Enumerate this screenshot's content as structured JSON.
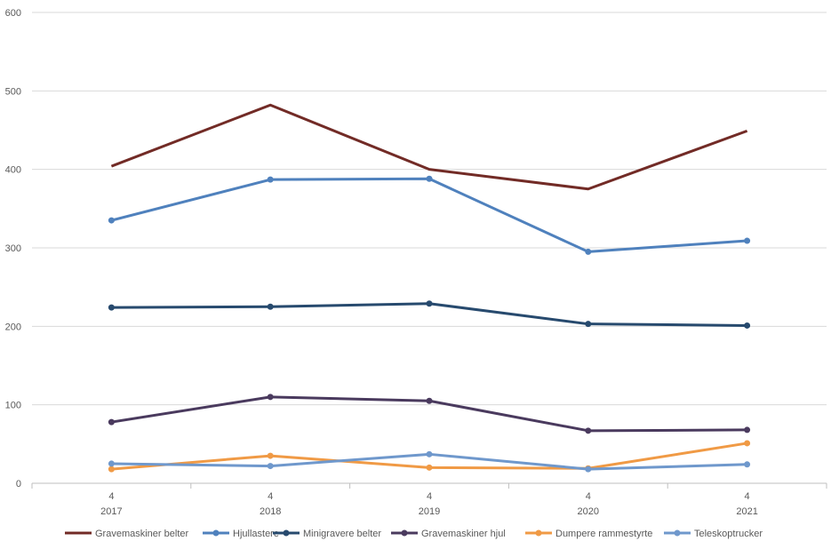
{
  "chart_data": {
    "type": "line",
    "title": "",
    "xlabel": "",
    "ylabel": "",
    "ylim": [
      0,
      600
    ],
    "yticks": [
      0,
      100,
      200,
      300,
      400,
      500,
      600
    ],
    "categories": [
      {
        "sub": "4",
        "year": "2017"
      },
      {
        "sub": "4",
        "year": "2018"
      },
      {
        "sub": "4",
        "year": "2019"
      },
      {
        "sub": "4",
        "year": "2020"
      },
      {
        "sub": "4",
        "year": "2021"
      }
    ],
    "grid": true,
    "legend_position": "bottom",
    "series": [
      {
        "name": "Gravemaskiner belter",
        "color": "#722b26",
        "markers": false,
        "values": [
          404,
          482,
          400,
          375,
          449
        ]
      },
      {
        "name": "Hjullastere",
        "color": "#4f81bd",
        "markers": true,
        "values": [
          335,
          387,
          388,
          295,
          309
        ]
      },
      {
        "name": "Minigravere belter",
        "color": "#274a6e",
        "markers": true,
        "values": [
          224,
          225,
          229,
          203,
          201
        ]
      },
      {
        "name": "Gravemaskiner hjul",
        "color": "#4a3a5e",
        "markers": true,
        "values": [
          78,
          110,
          105,
          67,
          68
        ]
      },
      {
        "name": "Dumpere rammestyrte",
        "color": "#f09a45",
        "markers": true,
        "values": [
          18,
          35,
          20,
          19,
          51
        ]
      },
      {
        "name": "Teleskoptrucker",
        "color": "#6f98cc",
        "markers": true,
        "values": [
          25,
          22,
          37,
          18,
          24
        ]
      }
    ]
  }
}
